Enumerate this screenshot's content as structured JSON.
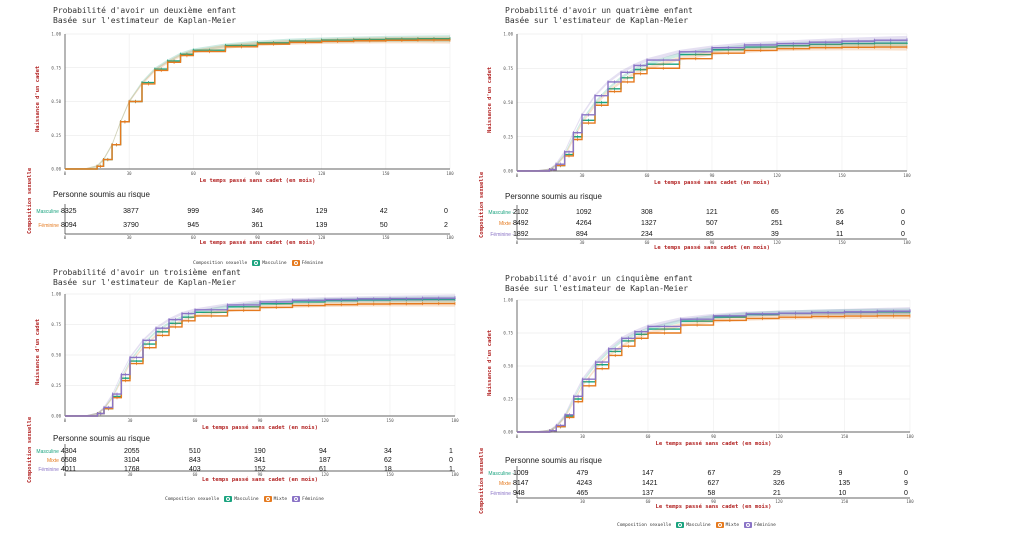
{
  "colors": {
    "masculin": "#1aa37f",
    "mixte": "#e57a1f",
    "feminin": "#8a73c6"
  },
  "chart_data": [
    {
      "type": "line",
      "title": "Probabilité d'avoir un deuxième enfant",
      "subtitle": "Basée sur l'estimateur de Kaplan-Meier",
      "ylabel": "Naissance d'un cadet",
      "xlabel": "Le temps passé sans cadet (en mois)",
      "ylim": [
        0,
        1
      ],
      "xlim": [
        0,
        180
      ],
      "xticks": [
        "0",
        "30",
        "60",
        "90",
        "120",
        "150",
        "180"
      ],
      "yticks": [
        "0.00",
        "0.25",
        "0.50",
        "0.75",
        "1.00"
      ],
      "series": [
        {
          "name": "Masculine",
          "color": "#1aa37f",
          "x": [
            0,
            10,
            15,
            18,
            22,
            26,
            30,
            36,
            42,
            48,
            54,
            60,
            75,
            90,
            105,
            120,
            135,
            150,
            165,
            180
          ],
          "y": [
            0,
            0,
            0.02,
            0.07,
            0.18,
            0.35,
            0.5,
            0.64,
            0.74,
            0.8,
            0.85,
            0.88,
            0.915,
            0.935,
            0.948,
            0.955,
            0.96,
            0.963,
            0.965,
            0.966
          ]
        },
        {
          "name": "Féminine",
          "color": "#e57a1f",
          "x": [
            0,
            10,
            15,
            18,
            22,
            26,
            30,
            36,
            42,
            48,
            54,
            60,
            75,
            90,
            105,
            120,
            135,
            150,
            165,
            180
          ],
          "y": [
            0,
            0,
            0.02,
            0.07,
            0.18,
            0.35,
            0.5,
            0.63,
            0.73,
            0.79,
            0.84,
            0.87,
            0.905,
            0.925,
            0.938,
            0.945,
            0.95,
            0.953,
            0.955,
            0.955
          ]
        }
      ],
      "risk_table": {
        "title": "Personne soumis au risque",
        "strata_label": "Composition sexuelle",
        "x": [
          "0",
          "30",
          "60",
          "90",
          "120",
          "150",
          "180"
        ],
        "rows": [
          {
            "label": "Masculine",
            "color": "#1aa37f",
            "values": [
              "8325",
              "3877",
              "999",
              "346",
              "129",
              "42",
              "0"
            ]
          },
          {
            "label": "Féminine",
            "color": "#e57a1f",
            "values": [
              "8094",
              "3790",
              "945",
              "361",
              "139",
              "50",
              "2"
            ]
          }
        ]
      },
      "legend": {
        "title": "Composition sexuelle",
        "items": [
          "Masculine",
          "Féminine"
        ]
      }
    },
    {
      "type": "line",
      "title": "Probabilité d'avoir un quatrième enfant",
      "subtitle": "Basée sur l'estimateur de Kaplan-Meier",
      "ylabel": "Naissance d'un cadet",
      "xlabel": "Le temps passé sans cadet (en mois)",
      "ylim": [
        0,
        1
      ],
      "xlim": [
        0,
        180
      ],
      "xticks": [
        "0",
        "30",
        "60",
        "90",
        "120",
        "150",
        "180"
      ],
      "yticks": [
        "0.00",
        "0.25",
        "0.50",
        "0.75",
        "1.00"
      ],
      "series": [
        {
          "name": "Masculine",
          "color": "#1aa37f",
          "x": [
            0,
            10,
            15,
            18,
            22,
            26,
            30,
            36,
            42,
            48,
            54,
            60,
            75,
            90,
            105,
            120,
            135,
            150,
            165,
            180
          ],
          "y": [
            0,
            0,
            0.01,
            0.04,
            0.12,
            0.25,
            0.37,
            0.5,
            0.6,
            0.68,
            0.74,
            0.78,
            0.85,
            0.885,
            0.905,
            0.915,
            0.925,
            0.93,
            0.933,
            0.935
          ]
        },
        {
          "name": "Mixte",
          "color": "#e57a1f",
          "x": [
            0,
            10,
            15,
            18,
            22,
            26,
            30,
            36,
            42,
            48,
            54,
            60,
            75,
            90,
            105,
            120,
            135,
            150,
            165,
            180
          ],
          "y": [
            0,
            0,
            0.01,
            0.04,
            0.11,
            0.23,
            0.35,
            0.48,
            0.58,
            0.65,
            0.71,
            0.75,
            0.82,
            0.86,
            0.88,
            0.893,
            0.9,
            0.903,
            0.905,
            0.905
          ]
        },
        {
          "name": "Féminine",
          "color": "#8a73c6",
          "x": [
            0,
            10,
            15,
            18,
            22,
            26,
            30,
            36,
            42,
            48,
            54,
            60,
            75,
            90,
            105,
            120,
            135,
            150,
            165,
            180
          ],
          "y": [
            0,
            0,
            0.01,
            0.05,
            0.14,
            0.28,
            0.41,
            0.55,
            0.65,
            0.72,
            0.77,
            0.81,
            0.87,
            0.9,
            0.92,
            0.93,
            0.94,
            0.948,
            0.955,
            0.96
          ]
        }
      ],
      "risk_table": {
        "title": "Personne soumis au risque",
        "strata_label": "Composition sexuelle",
        "x": [
          "0",
          "30",
          "60",
          "90",
          "120",
          "150",
          "180"
        ],
        "rows": [
          {
            "label": "Masculine",
            "color": "#1aa37f",
            "values": [
              "2102",
              "1092",
              "308",
              "121",
              "65",
              "26",
              "0"
            ]
          },
          {
            "label": "Mixte",
            "color": "#e57a1f",
            "values": [
              "8492",
              "4264",
              "1327",
              "507",
              "251",
              "84",
              "0"
            ]
          },
          {
            "label": "Féminine",
            "color": "#8a73c6",
            "values": [
              "1892",
              "894",
              "234",
              "85",
              "39",
              "11",
              "0"
            ]
          }
        ]
      }
    },
    {
      "type": "line",
      "title": "Probabilité d'avoir un troisième enfant",
      "subtitle": "Basée sur l'estimateur de Kaplan-Meier",
      "ylabel": "Naissance d'un cadet",
      "xlabel": "Le temps passé sans cadet (en mois)",
      "ylim": [
        0,
        1
      ],
      "xlim": [
        0,
        180
      ],
      "xticks": [
        "0",
        "30",
        "60",
        "90",
        "120",
        "150",
        "180"
      ],
      "yticks": [
        "0.00",
        "0.25",
        "0.50",
        "0.75",
        "1.00"
      ],
      "series": [
        {
          "name": "Masculine",
          "color": "#1aa37f",
          "x": [
            0,
            10,
            15,
            18,
            22,
            26,
            30,
            36,
            42,
            48,
            54,
            60,
            75,
            90,
            105,
            120,
            135,
            150,
            165,
            180
          ],
          "y": [
            0,
            0,
            0.02,
            0.06,
            0.16,
            0.31,
            0.45,
            0.59,
            0.69,
            0.76,
            0.81,
            0.85,
            0.895,
            0.92,
            0.935,
            0.945,
            0.95,
            0.953,
            0.955,
            0.955
          ]
        },
        {
          "name": "Mixte",
          "color": "#e57a1f",
          "x": [
            0,
            10,
            15,
            18,
            22,
            26,
            30,
            36,
            42,
            48,
            54,
            60,
            75,
            90,
            105,
            120,
            135,
            150,
            165,
            180
          ],
          "y": [
            0,
            0,
            0.02,
            0.06,
            0.15,
            0.29,
            0.43,
            0.56,
            0.66,
            0.73,
            0.78,
            0.82,
            0.865,
            0.89,
            0.905,
            0.913,
            0.918,
            0.92,
            0.922,
            0.922
          ]
        },
        {
          "name": "Féminine",
          "color": "#8a73c6",
          "x": [
            0,
            10,
            15,
            18,
            22,
            26,
            30,
            36,
            42,
            48,
            54,
            60,
            75,
            90,
            105,
            120,
            135,
            150,
            165,
            180
          ],
          "y": [
            0,
            0,
            0.02,
            0.07,
            0.18,
            0.34,
            0.48,
            0.62,
            0.72,
            0.79,
            0.84,
            0.87,
            0.91,
            0.935,
            0.948,
            0.955,
            0.96,
            0.963,
            0.966,
            0.97
          ]
        }
      ],
      "risk_table": {
        "title": "Personne soumis au risque",
        "strata_label": "Composition sexuelle",
        "x": [
          "0",
          "30",
          "60",
          "90",
          "120",
          "150",
          "180"
        ],
        "rows": [
          {
            "label": "Masculine",
            "color": "#1aa37f",
            "values": [
              "4304",
              "2055",
              "510",
              "190",
              "94",
              "34",
              "1"
            ]
          },
          {
            "label": "Mixte",
            "color": "#e57a1f",
            "values": [
              "6508",
              "3104",
              "843",
              "341",
              "187",
              "62",
              "0"
            ]
          },
          {
            "label": "Féminine",
            "color": "#8a73c6",
            "values": [
              "4011",
              "1768",
              "403",
              "152",
              "61",
              "18",
              "1"
            ]
          }
        ]
      },
      "legend": {
        "title": "Composition sexuelle",
        "items": [
          "Masculine",
          "Mixte",
          "Féminine"
        ]
      }
    },
    {
      "type": "line",
      "title": "Probabilité d'avoir un cinquième enfant",
      "subtitle": "Basée sur l'estimateur de Kaplan-Meier",
      "ylabel": "Naissance d'un cadet",
      "xlabel": "Le temps passé sans cadet (en mois)",
      "ylim": [
        0,
        1
      ],
      "xlim": [
        0,
        180
      ],
      "xticks": [
        "0",
        "30",
        "60",
        "90",
        "120",
        "150",
        "180"
      ],
      "yticks": [
        "0.00",
        "0.25",
        "0.50",
        "0.75",
        "1.00"
      ],
      "series": [
        {
          "name": "Masculine",
          "color": "#1aa37f",
          "x": [
            0,
            10,
            15,
            18,
            22,
            26,
            30,
            36,
            42,
            48,
            54,
            60,
            75,
            90,
            105,
            120,
            135,
            150,
            165,
            180
          ],
          "y": [
            0,
            0,
            0.01,
            0.04,
            0.12,
            0.25,
            0.38,
            0.51,
            0.61,
            0.69,
            0.74,
            0.78,
            0.84,
            0.87,
            0.89,
            0.9,
            0.905,
            0.908,
            0.91,
            0.91
          ]
        },
        {
          "name": "Mixte",
          "color": "#e57a1f",
          "x": [
            0,
            10,
            15,
            18,
            22,
            26,
            30,
            36,
            42,
            48,
            54,
            60,
            75,
            90,
            105,
            120,
            135,
            150,
            165,
            180
          ],
          "y": [
            0,
            0,
            0.01,
            0.04,
            0.11,
            0.23,
            0.35,
            0.48,
            0.58,
            0.65,
            0.71,
            0.75,
            0.81,
            0.845,
            0.86,
            0.87,
            0.875,
            0.878,
            0.88,
            0.88
          ]
        },
        {
          "name": "Féminine",
          "color": "#8a73c6",
          "x": [
            0,
            10,
            15,
            18,
            22,
            26,
            30,
            36,
            42,
            48,
            54,
            60,
            75,
            90,
            105,
            120,
            135,
            150,
            165,
            180
          ],
          "y": [
            0,
            0,
            0.01,
            0.05,
            0.13,
            0.27,
            0.4,
            0.53,
            0.63,
            0.71,
            0.76,
            0.8,
            0.855,
            0.88,
            0.895,
            0.9,
            0.905,
            0.91,
            0.915,
            0.92
          ]
        }
      ],
      "risk_table": {
        "title": "Personne soumis au risque",
        "strata_label": "Composition sexuelle",
        "x": [
          "0",
          "30",
          "60",
          "90",
          "120",
          "150",
          "180"
        ],
        "rows": [
          {
            "label": "Masculine",
            "color": "#1aa37f",
            "values": [
              "1009",
              "479",
              "147",
              "67",
              "29",
              "9",
              "0"
            ]
          },
          {
            "label": "Mixte",
            "color": "#e57a1f",
            "values": [
              "8147",
              "4243",
              "1421",
              "627",
              "326",
              "135",
              "9"
            ]
          },
          {
            "label": "Féminine",
            "color": "#8a73c6",
            "values": [
              "948",
              "465",
              "137",
              "58",
              "21",
              "10",
              "0"
            ]
          }
        ]
      },
      "legend": {
        "title": "Composition sexuelle",
        "items": [
          "Masculine",
          "Mixte",
          "Féminine"
        ]
      }
    }
  ]
}
